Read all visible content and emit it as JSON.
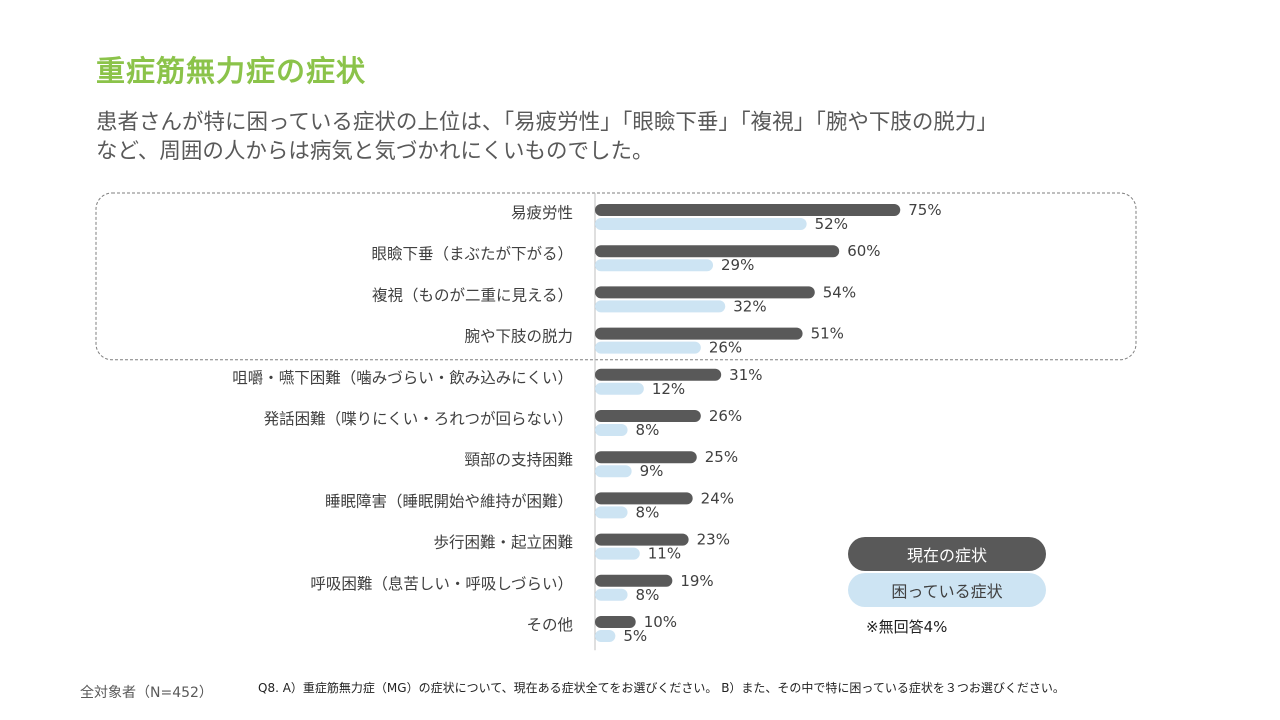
{
  "title": "重症筋無力症の症状",
  "subtitle": {
    "line1": "患者さんが特に困っている症状の上位は、「易疲労性」「眼瞼下垂」「複視」「腕や下肢の脱力」",
    "line2": "など、周囲の人からは病気と気づかれにくいものでした。"
  },
  "legend": {
    "current": "現在の症状",
    "trouble": "困っている症状"
  },
  "note": "※無回答4%",
  "sample": "全対象者（N=452）",
  "question": "Q8.  A）重症筋無力症（MG）の症状について、現在ある症状全てをお選びください。  B）また、その中で特に困っている症状を３つお選びください。",
  "colors": {
    "current": "#595959",
    "trouble": "#cde4f3",
    "title": "#8bc34a"
  },
  "chart_data": {
    "type": "bar",
    "orientation": "horizontal",
    "categories": [
      "易疲労性",
      "眼瞼下垂（まぶたが下がる）",
      "複視（ものが二重に見える）",
      "腕や下肢の脱力",
      "咀嚼・嚥下困難（噛みづらい・飲み込みにくい）",
      "発話困難（喋りにくい・ろれつが回らない）",
      "頸部の支持困難",
      "睡眠障害（睡眠開始や維持が困難）",
      "歩行困難・起立困難",
      "呼吸困難（息苦しい・呼吸しづらい）",
      "その他"
    ],
    "series": [
      {
        "name": "現在の症状",
        "values": [
          75,
          60,
          54,
          51,
          31,
          26,
          25,
          24,
          23,
          19,
          10
        ]
      },
      {
        "name": "困っている症状",
        "values": [
          52,
          29,
          32,
          26,
          12,
          8,
          9,
          8,
          11,
          8,
          5
        ]
      }
    ],
    "value_suffix": "%",
    "xlim": [
      0,
      100
    ],
    "grid": false,
    "highlight_top": 4,
    "legend_position": "bottom-right"
  }
}
